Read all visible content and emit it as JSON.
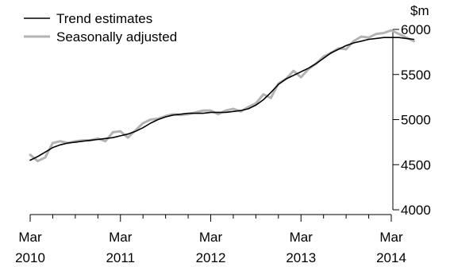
{
  "chart_data": {
    "type": "line",
    "title": "",
    "xlabel": "",
    "ylabel": "$m",
    "ylim": [
      4000,
      6000
    ],
    "yticks": [
      4000,
      4500,
      5000,
      5500,
      6000
    ],
    "y_axis_side": "right",
    "x_ticks": [
      {
        "month": "Mar",
        "year": "2010",
        "t": 0
      },
      {
        "month": "Mar",
        "year": "2011",
        "t": 12
      },
      {
        "month": "Mar",
        "year": "2012",
        "t": 24
      },
      {
        "month": "Mar",
        "year": "2013",
        "t": 36
      },
      {
        "month": "Mar",
        "year": "2014",
        "t": 48
      }
    ],
    "x_period": "monthly, Mar 2010 to Mar 2014",
    "legend": {
      "placement": "top-left",
      "entries": [
        {
          "label": "Trend estimates",
          "color": "#000000"
        },
        {
          "label": "Seasonally adjusted",
          "color": "#b3b3b3"
        }
      ]
    },
    "grid": false,
    "series": [
      {
        "name": "Trend estimates",
        "color": "#000000",
        "values": [
          4550,
          4590,
          4640,
          4690,
          4720,
          4740,
          4750,
          4760,
          4770,
          4780,
          4790,
          4800,
          4820,
          4840,
          4870,
          4910,
          4960,
          5000,
          5030,
          5050,
          5060,
          5070,
          5070,
          5070,
          5080,
          5080,
          5080,
          5090,
          5100,
          5120,
          5160,
          5220,
          5300,
          5390,
          5450,
          5490,
          5530,
          5570,
          5620,
          5680,
          5740,
          5780,
          5820,
          5850,
          5870,
          5890,
          5900,
          5910,
          5910,
          5910,
          5900,
          5890
        ]
      },
      {
        "name": "Seasonally adjusted",
        "color": "#b3b3b3",
        "values": [
          4610,
          4540,
          4580,
          4740,
          4760,
          4740,
          4760,
          4770,
          4770,
          4790,
          4760,
          4860,
          4870,
          4800,
          4880,
          4960,
          5000,
          5010,
          5040,
          5060,
          5050,
          5060,
          5080,
          5100,
          5100,
          5060,
          5100,
          5120,
          5090,
          5140,
          5180,
          5280,
          5240,
          5400,
          5450,
          5540,
          5470,
          5560,
          5620,
          5700,
          5740,
          5790,
          5780,
          5870,
          5920,
          5910,
          5950,
          5960,
          5990,
          5950,
          5910,
          5870
        ]
      }
    ]
  }
}
